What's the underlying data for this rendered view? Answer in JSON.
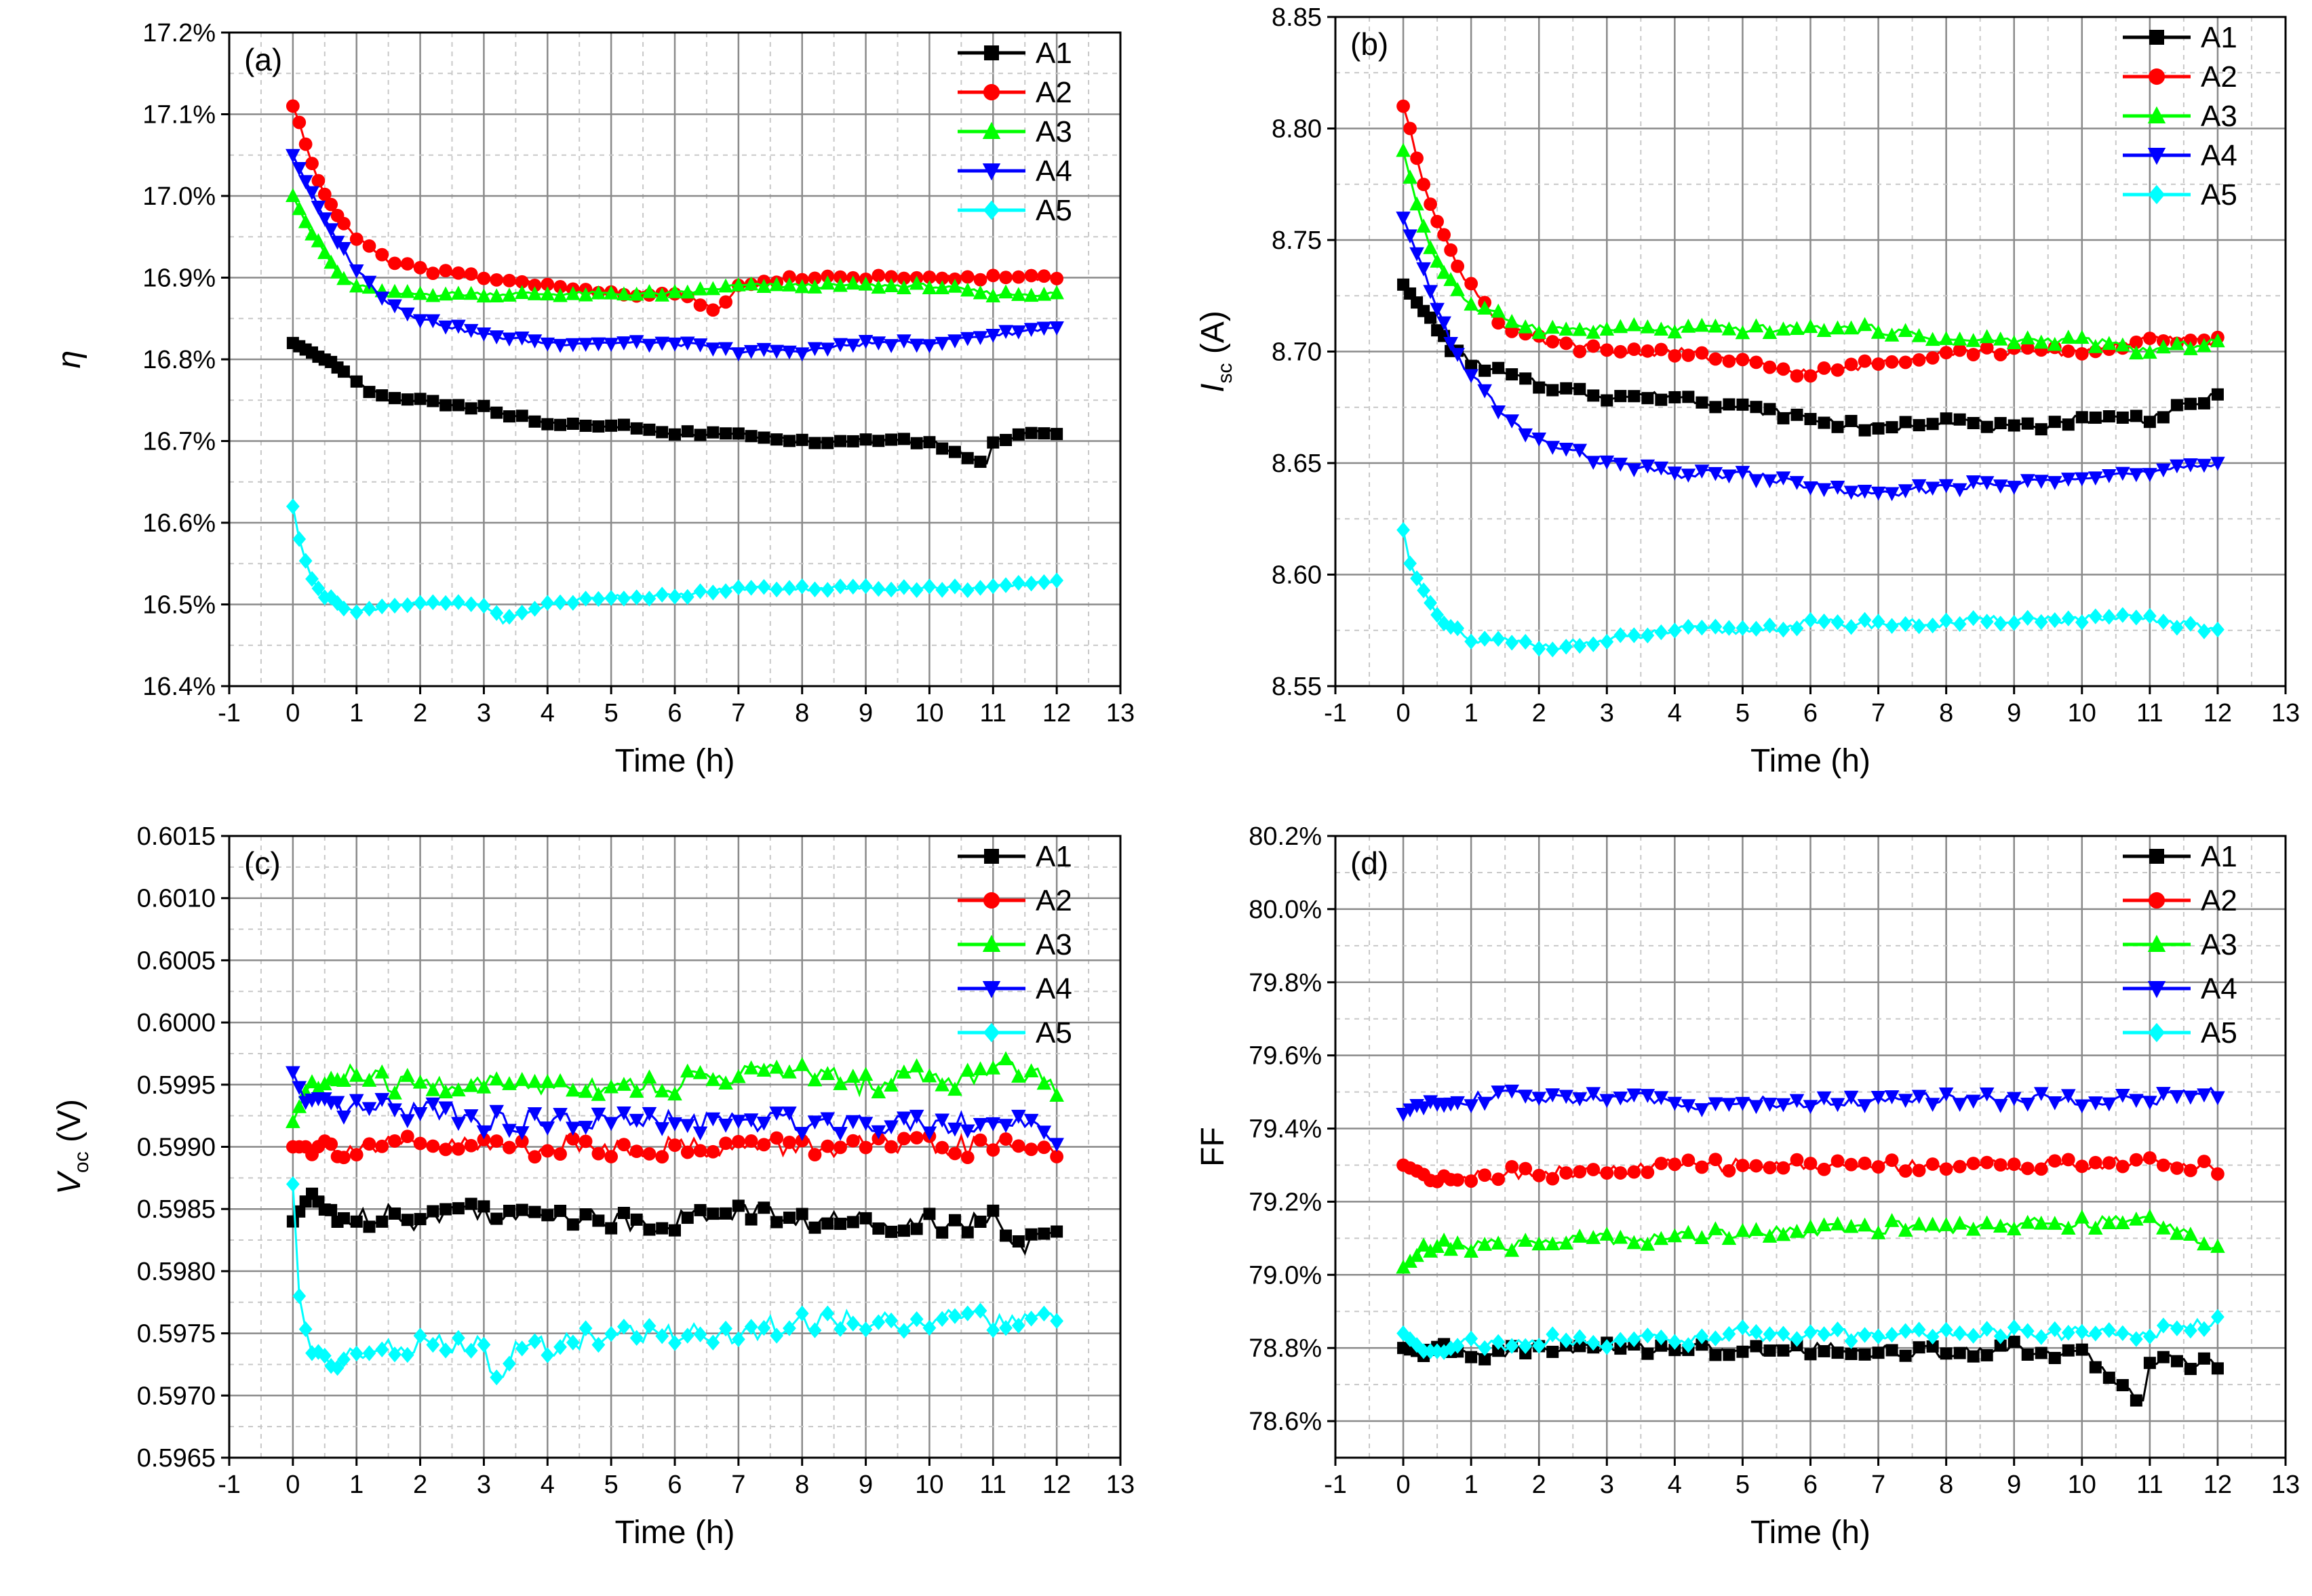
{
  "colors": {
    "A1": "#000000",
    "A2": "#ff0000",
    "A3": "#00ff00",
    "A4": "#0000ff",
    "A5": "#00ffff"
  },
  "chart_data": [
    {
      "type": "line",
      "panel_label": "(a)",
      "xlabel": "Time (h)",
      "ylabel": "η",
      "xlim": [
        -1,
        13
      ],
      "ylim": [
        16.4,
        17.2
      ],
      "xticks": [
        "-1",
        "0",
        "1",
        "2",
        "3",
        "4",
        "5",
        "6",
        "7",
        "8",
        "9",
        "10",
        "11",
        "12",
        "13"
      ],
      "yticks": [
        "16.4%",
        "16.5%",
        "16.6%",
        "16.7%",
        "16.8%",
        "16.9%",
        "17.0%",
        "17.1%",
        "17.2%"
      ],
      "grid": true,
      "legend_position": "top-right",
      "series": [
        {
          "name": "A1",
          "marker": "square",
          "x": [
            0,
            0.25,
            0.5,
            0.75,
            1,
            1.5,
            2,
            3,
            4,
            5,
            6,
            7,
            8,
            9,
            10,
            10.9,
            11,
            11.5,
            12
          ],
          "y": [
            16.82,
            16.81,
            16.8,
            16.79,
            16.77,
            16.75,
            16.75,
            16.74,
            16.72,
            16.72,
            16.71,
            16.71,
            16.7,
            16.7,
            16.7,
            16.67,
            16.7,
            16.71,
            16.71
          ]
        },
        {
          "name": "A2",
          "marker": "circle",
          "x": [
            0,
            0.1,
            0.25,
            0.5,
            0.75,
            1,
            1.5,
            2,
            3,
            4,
            5,
            6,
            6.7,
            7,
            8,
            9,
            10,
            11,
            12
          ],
          "y": [
            17.11,
            17.09,
            17.05,
            17.0,
            16.97,
            16.95,
            16.92,
            16.91,
            16.9,
            16.89,
            16.88,
            16.88,
            16.86,
            16.89,
            16.9,
            16.9,
            16.9,
            16.9,
            16.9
          ]
        },
        {
          "name": "A3",
          "marker": "triangle-up",
          "x": [
            0,
            0.25,
            0.5,
            0.75,
            1,
            1.5,
            2,
            3,
            4,
            5,
            6,
            7,
            8,
            9,
            10,
            11,
            12
          ],
          "y": [
            17.0,
            16.96,
            16.93,
            16.9,
            16.89,
            16.88,
            16.88,
            16.88,
            16.88,
            16.88,
            16.88,
            16.89,
            16.89,
            16.89,
            16.89,
            16.88,
            16.88
          ]
        },
        {
          "name": "A4",
          "marker": "triangle-down",
          "x": [
            0,
            0.25,
            0.5,
            0.75,
            1,
            1.5,
            2,
            3,
            4,
            5,
            6,
            7,
            8,
            9,
            10,
            11,
            12
          ],
          "y": [
            17.05,
            17.01,
            16.97,
            16.94,
            16.91,
            16.87,
            16.85,
            16.83,
            16.82,
            16.82,
            16.82,
            16.81,
            16.81,
            16.82,
            16.82,
            16.83,
            16.84
          ]
        },
        {
          "name": "A5",
          "marker": "diamond",
          "x": [
            0,
            0.1,
            0.25,
            0.5,
            0.75,
            1,
            1.5,
            2,
            3,
            3.3,
            4,
            5,
            6,
            7,
            8,
            9,
            10,
            11,
            12
          ],
          "y": [
            16.62,
            16.58,
            16.54,
            16.51,
            16.5,
            16.49,
            16.5,
            16.5,
            16.5,
            16.48,
            16.5,
            16.51,
            16.51,
            16.52,
            16.52,
            16.52,
            16.52,
            16.52,
            16.53
          ]
        }
      ]
    },
    {
      "type": "line",
      "panel_label": "(b)",
      "xlabel": "Time (h)",
      "ylabel": "I",
      "ylabel_sub": "sc",
      "ylabel_unit": " (A)",
      "xlim": [
        -1,
        13
      ],
      "ylim": [
        8.55,
        8.85
      ],
      "xticks": [
        "-1",
        "0",
        "1",
        "2",
        "3",
        "4",
        "5",
        "6",
        "7",
        "8",
        "9",
        "10",
        "11",
        "12",
        "13"
      ],
      "yticks": [
        "8.55",
        "8.60",
        "8.65",
        "8.70",
        "8.75",
        "8.80",
        "8.85"
      ],
      "grid": true,
      "legend_position": "top-right",
      "series": [
        {
          "name": "A1",
          "marker": "square",
          "x": [
            0,
            0.25,
            0.5,
            0.75,
            1,
            1.5,
            2,
            3,
            4,
            5,
            6,
            7,
            8,
            9,
            10,
            11,
            12
          ],
          "y": [
            8.73,
            8.72,
            8.71,
            8.7,
            8.695,
            8.69,
            8.685,
            8.68,
            8.68,
            8.675,
            8.67,
            8.665,
            8.67,
            8.665,
            8.67,
            8.67,
            8.68
          ]
        },
        {
          "name": "A2",
          "marker": "circle",
          "x": [
            0,
            0.1,
            0.25,
            0.5,
            0.75,
            1,
            1.5,
            2,
            3,
            4,
            5,
            6,
            7,
            8,
            9,
            10,
            11,
            12
          ],
          "y": [
            8.81,
            8.8,
            8.78,
            8.76,
            8.74,
            8.73,
            8.71,
            8.705,
            8.7,
            8.7,
            8.695,
            8.69,
            8.695,
            8.7,
            8.7,
            8.7,
            8.705,
            8.705
          ]
        },
        {
          "name": "A3",
          "marker": "triangle-up",
          "x": [
            0,
            0.25,
            0.5,
            0.75,
            1,
            1.5,
            2,
            3,
            4,
            5,
            6,
            7,
            8,
            9,
            10,
            11,
            12
          ],
          "y": [
            8.79,
            8.76,
            8.74,
            8.73,
            8.72,
            8.715,
            8.71,
            8.71,
            8.71,
            8.71,
            8.71,
            8.71,
            8.705,
            8.705,
            8.705,
            8.7,
            8.705
          ]
        },
        {
          "name": "A4",
          "marker": "triangle-down",
          "x": [
            0,
            0.25,
            0.5,
            0.75,
            1,
            1.5,
            2,
            3,
            4,
            5,
            6,
            7,
            8,
            9,
            10,
            11,
            12
          ],
          "y": [
            8.76,
            8.74,
            8.72,
            8.7,
            8.69,
            8.67,
            8.66,
            8.65,
            8.645,
            8.645,
            8.64,
            8.635,
            8.64,
            8.64,
            8.645,
            8.645,
            8.65
          ]
        },
        {
          "name": "A5",
          "marker": "diamond",
          "x": [
            0,
            0.1,
            0.25,
            0.5,
            0.75,
            1,
            1.5,
            2,
            3,
            4,
            5,
            6,
            7,
            8,
            9,
            10,
            11,
            12
          ],
          "y": [
            8.62,
            8.605,
            8.595,
            8.58,
            8.575,
            8.57,
            8.57,
            8.568,
            8.57,
            8.575,
            8.575,
            8.578,
            8.578,
            8.578,
            8.58,
            8.58,
            8.58,
            8.575
          ]
        }
      ]
    },
    {
      "type": "line",
      "panel_label": "(c)",
      "xlabel": "Time (h)",
      "ylabel": "V",
      "ylabel_sub": "oc",
      "ylabel_unit": " (V)",
      "xlim": [
        -1,
        13
      ],
      "ylim": [
        0.5965,
        0.6015
      ],
      "xticks": [
        "-1",
        "0",
        "1",
        "2",
        "3",
        "4",
        "5",
        "6",
        "7",
        "8",
        "9",
        "10",
        "11",
        "12",
        "13"
      ],
      "yticks": [
        "0.5965",
        "0.5970",
        "0.5975",
        "0.5980",
        "0.5985",
        "0.5990",
        "0.5995",
        "0.6000",
        "0.6005",
        "0.6010",
        "0.6015"
      ],
      "grid": true,
      "legend_position": "top-right",
      "series": [
        {
          "name": "A1",
          "marker": "square",
          "x": [
            0,
            0.25,
            0.5,
            1,
            1.5,
            2,
            2.5,
            3,
            3.5,
            4,
            5,
            6,
            7,
            8,
            9,
            10,
            11,
            11.5,
            12
          ],
          "y": [
            0.5984,
            0.5986,
            0.5985,
            0.5984,
            0.5985,
            0.5984,
            0.5985,
            0.5985,
            0.5984,
            0.5985,
            0.5984,
            0.5984,
            0.5985,
            0.5984,
            0.5984,
            0.5984,
            0.5984,
            0.5982,
            0.5983
          ]
        },
        {
          "name": "A2",
          "marker": "circle",
          "x": [
            0,
            0.25,
            0.5,
            1,
            1.5,
            2,
            2.5,
            3,
            4,
            5,
            6,
            7,
            8,
            9,
            10,
            11,
            12
          ],
          "y": [
            0.599,
            0.599,
            0.599,
            0.599,
            0.599,
            0.599,
            0.599,
            0.599,
            0.599,
            0.599,
            0.599,
            0.599,
            0.599,
            0.599,
            0.599,
            0.599,
            0.599
          ]
        },
        {
          "name": "A3",
          "marker": "triangle-up",
          "x": [
            0,
            0.25,
            0.5,
            1,
            1.5,
            2,
            2.5,
            3,
            4,
            5,
            6,
            7,
            8,
            9,
            10,
            10.5,
            11,
            11.5,
            12
          ],
          "y": [
            0.5992,
            0.5995,
            0.5995,
            0.5996,
            0.5995,
            0.5995,
            0.5995,
            0.5995,
            0.5995,
            0.5995,
            0.5995,
            0.5996,
            0.5996,
            0.5995,
            0.5996,
            0.5995,
            0.5997,
            0.5996,
            0.5995
          ]
        },
        {
          "name": "A4",
          "marker": "triangle-down",
          "x": [
            0,
            0.25,
            0.5,
            1,
            1.5,
            2,
            2.5,
            3,
            4,
            5,
            6,
            7,
            8,
            9,
            10,
            11,
            12
          ],
          "y": [
            0.5996,
            0.5993,
            0.5993,
            0.5993,
            0.5993,
            0.5993,
            0.5993,
            0.5992,
            0.5992,
            0.5992,
            0.5992,
            0.5992,
            0.5992,
            0.5992,
            0.5992,
            0.5992,
            0.5991
          ]
        },
        {
          "name": "A5",
          "marker": "diamond",
          "x": [
            0,
            0.1,
            0.25,
            0.5,
            1,
            1.5,
            2,
            3,
            3.25,
            3.5,
            4,
            5,
            6,
            7,
            8,
            9,
            10,
            11,
            12
          ],
          "y": [
            0.5987,
            0.5978,
            0.5974,
            0.5973,
            0.5973,
            0.5974,
            0.5974,
            0.5974,
            0.597,
            0.5974,
            0.5974,
            0.5975,
            0.5975,
            0.5975,
            0.5976,
            0.5976,
            0.5976,
            0.5976,
            0.5976
          ]
        }
      ]
    },
    {
      "type": "line",
      "panel_label": "(d)",
      "xlabel": "Time (h)",
      "ylabel": "FF",
      "xlim": [
        -1,
        13
      ],
      "ylim": [
        78.5,
        80.2
      ],
      "xticks": [
        "-1",
        "0",
        "1",
        "2",
        "3",
        "4",
        "5",
        "6",
        "7",
        "8",
        "9",
        "10",
        "11",
        "12",
        "13"
      ],
      "yticks": [
        "78.6%",
        "78.8%",
        "79.0%",
        "79.2%",
        "79.4%",
        "79.6%",
        "79.8%",
        "80.0%",
        "80.2%"
      ],
      "ytick_values": [
        78.6,
        78.8,
        79.0,
        79.2,
        79.4,
        79.6,
        79.8,
        80.0,
        80.2
      ],
      "grid": true,
      "legend_position": "top-right",
      "series": [
        {
          "name": "A1",
          "marker": "square",
          "x": [
            0,
            0.25,
            0.5,
            1,
            1.5,
            2,
            3,
            4,
            5,
            6,
            7,
            8,
            9,
            10,
            10.9,
            11,
            11.5,
            12
          ],
          "y": [
            78.8,
            78.79,
            78.8,
            78.78,
            78.79,
            78.8,
            78.8,
            78.8,
            78.79,
            78.8,
            78.79,
            78.79,
            78.8,
            78.78,
            78.66,
            78.77,
            78.76,
            78.76
          ]
        },
        {
          "name": "A2",
          "marker": "circle",
          "x": [
            0,
            0.25,
            0.5,
            1,
            1.5,
            2,
            3,
            4,
            5,
            6,
            7,
            8,
            9,
            10,
            11,
            12
          ],
          "y": [
            79.3,
            79.28,
            79.27,
            79.27,
            79.28,
            79.28,
            79.28,
            79.3,
            79.3,
            79.3,
            79.3,
            79.3,
            79.3,
            79.3,
            79.31,
            79.29
          ]
        },
        {
          "name": "A3",
          "marker": "triangle-up",
          "x": [
            0,
            0.25,
            0.5,
            1,
            1.5,
            2,
            3,
            4,
            5,
            6,
            7,
            8,
            9,
            10,
            11,
            12
          ],
          "y": [
            79.02,
            79.06,
            79.08,
            79.08,
            79.08,
            79.09,
            79.1,
            79.1,
            79.12,
            79.12,
            79.13,
            79.13,
            79.14,
            79.14,
            79.15,
            79.08
          ]
        },
        {
          "name": "A4",
          "marker": "triangle-down",
          "x": [
            0,
            0.25,
            0.5,
            1,
            1.5,
            2,
            3,
            4,
            5,
            6,
            7,
            8,
            9,
            10,
            11,
            12
          ],
          "y": [
            79.44,
            79.47,
            79.48,
            79.48,
            79.49,
            79.48,
            79.49,
            79.47,
            79.47,
            79.47,
            79.48,
            79.48,
            79.48,
            79.48,
            79.48,
            79.5
          ]
        },
        {
          "name": "A5",
          "marker": "diamond",
          "x": [
            0,
            0.25,
            0.5,
            1,
            1.5,
            2,
            3,
            4,
            5,
            6,
            7,
            8,
            9,
            10,
            11,
            12
          ],
          "y": [
            78.84,
            78.8,
            78.8,
            78.82,
            78.8,
            78.82,
            78.82,
            78.82,
            78.84,
            78.83,
            78.84,
            78.84,
            78.84,
            78.84,
            78.84,
            78.87
          ]
        }
      ]
    }
  ]
}
